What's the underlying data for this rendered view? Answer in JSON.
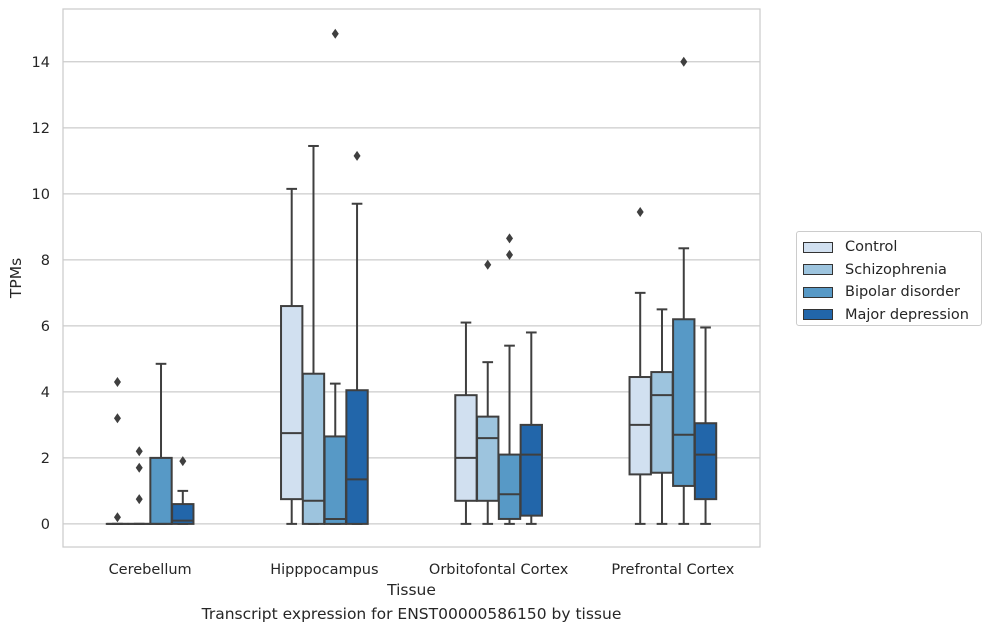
{
  "chart_data": {
    "type": "box",
    "caption": "Transcript expression for ENST00000586150 by tissue",
    "xlabel": "Tissue",
    "ylabel": "TPMs",
    "ylim": [
      -0.7,
      15.6
    ],
    "yticks": [
      0,
      2,
      4,
      6,
      8,
      10,
      12,
      14
    ],
    "grid": "horizontal",
    "legend_position": "right",
    "categories": [
      "Cerebellum",
      "Hipppocampus",
      "Orbitofontal Cortex",
      "Prefrontal Cortex"
    ],
    "series": [
      {
        "name": "Control",
        "color": "#d1e0f0",
        "boxes": [
          {
            "min": 0,
            "q1": 0,
            "median": 0,
            "q3": 0,
            "max": 0,
            "outliers": [
              0.2,
              3.2,
              4.3
            ]
          },
          {
            "min": 0,
            "q1": 0.75,
            "median": 2.75,
            "q3": 6.6,
            "max": 10.15,
            "outliers": []
          },
          {
            "min": 0,
            "q1": 0.7,
            "median": 2.0,
            "q3": 3.9,
            "max": 6.1,
            "outliers": []
          },
          {
            "min": 0,
            "q1": 1.5,
            "median": 3.0,
            "q3": 4.45,
            "max": 7.0,
            "outliers": [
              9.45
            ]
          }
        ]
      },
      {
        "name": "Schizophrenia",
        "color": "#9dc4de",
        "boxes": [
          {
            "min": 0,
            "q1": 0,
            "median": 0,
            "q3": 0,
            "max": 0,
            "outliers": [
              0.75,
              1.7,
              2.2
            ]
          },
          {
            "min": 0,
            "q1": 0,
            "median": 0.7,
            "q3": 4.55,
            "max": 11.45,
            "outliers": []
          },
          {
            "min": 0,
            "q1": 0.7,
            "median": 2.6,
            "q3": 3.25,
            "max": 4.9,
            "outliers": [
              7.85
            ]
          },
          {
            "min": 0,
            "q1": 1.55,
            "median": 3.9,
            "q3": 4.6,
            "max": 6.5,
            "outliers": []
          }
        ]
      },
      {
        "name": "Bipolar disorder",
        "color": "#5799c6",
        "boxes": [
          {
            "min": 0,
            "q1": 0,
            "median": 0,
            "q3": 2.0,
            "max": 4.85,
            "outliers": []
          },
          {
            "min": 0,
            "q1": 0,
            "median": 0.15,
            "q3": 2.65,
            "max": 4.25,
            "outliers": [
              14.85
            ]
          },
          {
            "min": 0,
            "q1": 0.15,
            "median": 0.9,
            "q3": 2.1,
            "max": 5.4,
            "outliers": [
              8.15,
              8.65
            ]
          },
          {
            "min": 0,
            "q1": 1.15,
            "median": 2.7,
            "q3": 6.2,
            "max": 8.35,
            "outliers": [
              14.0
            ]
          }
        ]
      },
      {
        "name": "Major depression",
        "color": "#2266aa",
        "boxes": [
          {
            "min": 0,
            "q1": 0,
            "median": 0.1,
            "q3": 0.6,
            "max": 1.0,
            "outliers": [
              1.9
            ]
          },
          {
            "min": 0,
            "q1": 0,
            "median": 1.35,
            "q3": 4.05,
            "max": 9.7,
            "outliers": [
              11.15
            ]
          },
          {
            "min": 0,
            "q1": 0.25,
            "median": 2.1,
            "q3": 3.0,
            "max": 5.8,
            "outliers": []
          },
          {
            "min": 0,
            "q1": 0.75,
            "median": 2.1,
            "q3": 3.05,
            "max": 5.95,
            "outliers": []
          }
        ]
      }
    ]
  }
}
